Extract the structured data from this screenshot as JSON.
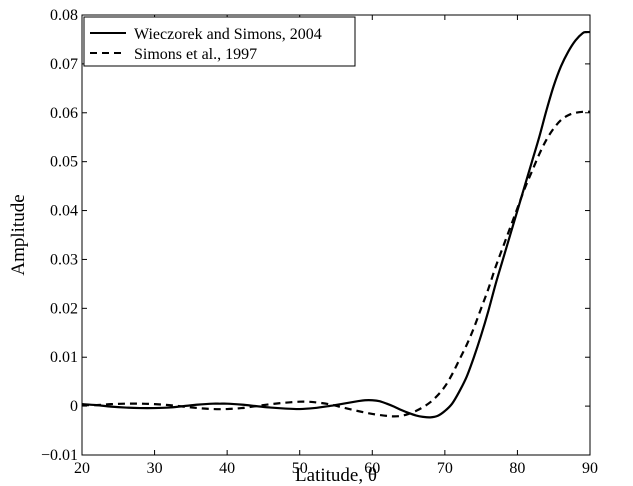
{
  "chart_data": {
    "type": "line",
    "title": "",
    "xlabel": "Latitude, θ",
    "ylabel": "Amplitude",
    "xlim": [
      20,
      90
    ],
    "ylim": [
      -0.01,
      0.08
    ],
    "xticks": [
      20,
      30,
      40,
      50,
      60,
      70,
      80,
      90
    ],
    "xtick_labels": [
      "20",
      "30",
      "40",
      "50",
      "60",
      "70",
      "80",
      "90"
    ],
    "yticks": [
      -0.01,
      0,
      0.01,
      0.02,
      0.03,
      0.04,
      0.05,
      0.06,
      0.07,
      0.08
    ],
    "ytick_labels": [
      "−0.01",
      "0",
      "0.01",
      "0.02",
      "0.03",
      "0.04",
      "0.05",
      "0.06",
      "0.07",
      "0.08"
    ],
    "grid": false,
    "legend_position": "top-left",
    "series": [
      {
        "name": "Wieczorek and Simons, 2004",
        "style": "solid",
        "color": "#000000",
        "x": [
          20,
          22,
          24,
          26,
          28,
          30,
          32,
          34,
          36,
          38,
          39,
          40,
          42,
          44,
          46,
          48,
          50,
          52,
          54,
          56,
          58,
          59,
          60,
          61,
          62,
          63,
          64,
          65,
          66,
          67,
          68,
          69,
          70,
          71,
          72,
          73,
          74,
          75,
          76,
          77,
          78,
          79,
          80,
          81,
          82,
          83,
          84,
          85,
          86,
          87,
          88,
          89,
          89.5,
          90
        ],
        "y": [
          0.0004,
          0.0002,
          -0.0001,
          -0.0003,
          -0.0004,
          -0.0004,
          -0.0003,
          0.0,
          0.0003,
          0.0005,
          0.0005,
          0.0005,
          0.0003,
          0.0,
          -0.0003,
          -0.0005,
          -0.0006,
          -0.0004,
          0.0,
          0.0005,
          0.001,
          0.0012,
          0.0012,
          0.001,
          0.0005,
          -0.0001,
          -0.0008,
          -0.0014,
          -0.0019,
          -0.0022,
          -0.0023,
          -0.002,
          -0.001,
          0.0005,
          0.003,
          0.006,
          0.01,
          0.0145,
          0.0195,
          0.025,
          0.03,
          0.035,
          0.04,
          0.045,
          0.05,
          0.055,
          0.0605,
          0.0655,
          0.0695,
          0.0725,
          0.0748,
          0.0763,
          0.0765,
          0.0765
        ]
      },
      {
        "name": "Simons et al., 1997",
        "style": "dashed",
        "color": "#000000",
        "x": [
          20,
          22,
          24,
          26,
          28,
          30,
          32,
          34,
          36,
          38,
          40,
          42,
          44,
          46,
          48,
          50,
          51,
          52,
          54,
          56,
          58,
          60,
          62,
          63,
          64,
          65,
          66,
          67,
          68,
          69,
          70,
          71,
          72,
          73,
          74,
          75,
          76,
          77,
          78,
          79,
          80,
          81,
          82,
          83,
          84,
          85,
          86,
          87,
          88,
          89,
          90
        ],
        "y": [
          0.0002,
          0.0002,
          0.0004,
          0.0005,
          0.0005,
          0.0004,
          0.0002,
          -0.0001,
          -0.0004,
          -0.0006,
          -0.0006,
          -0.0004,
          0.0,
          0.0004,
          0.0007,
          0.0009,
          0.0009,
          0.0008,
          0.0004,
          -0.0003,
          -0.001,
          -0.0016,
          -0.002,
          -0.0021,
          -0.002,
          -0.0016,
          -0.001,
          -0.0002,
          0.0008,
          0.0022,
          0.004,
          0.0065,
          0.0095,
          0.0125,
          0.016,
          0.02,
          0.024,
          0.0285,
          0.0325,
          0.0365,
          0.0405,
          0.0445,
          0.048,
          0.0515,
          0.0545,
          0.0568,
          0.0585,
          0.0595,
          0.06,
          0.0602,
          0.0602
        ]
      }
    ]
  }
}
